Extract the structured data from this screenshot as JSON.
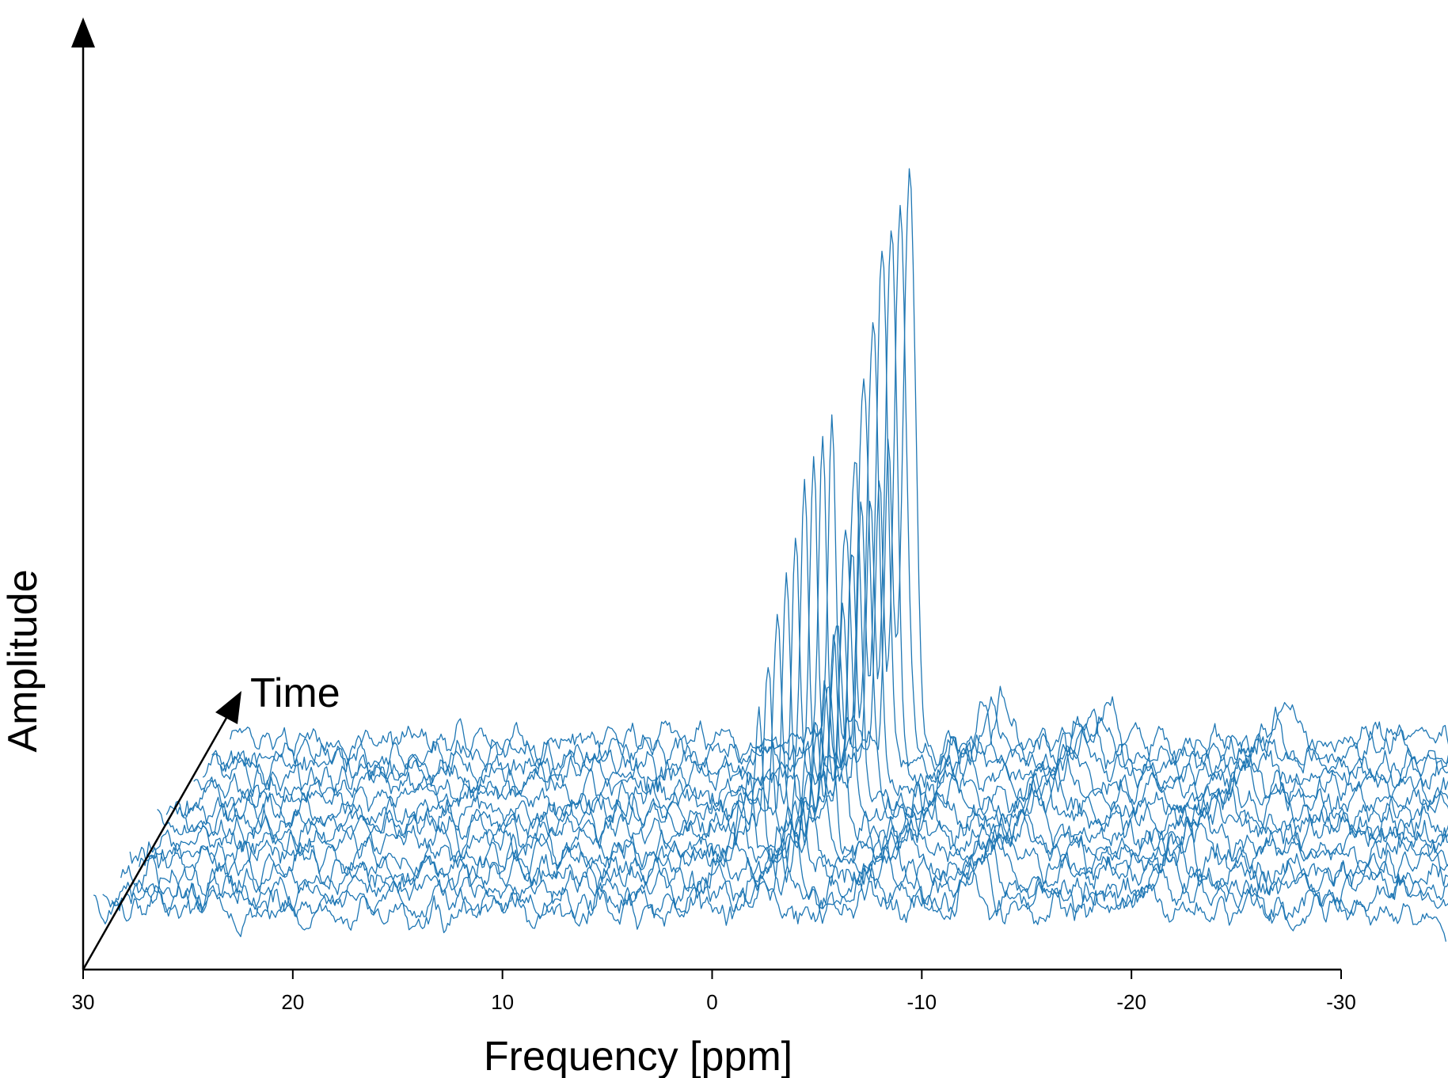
{
  "chart_data": {
    "type": "line",
    "subtype": "waterfall-3d",
    "xlabel": "Frequency [ppm]",
    "ylabel": "Amplitude",
    "depth_label": "Time",
    "x_reversed": true,
    "xlim": [
      30,
      -30
    ],
    "xticks": [
      30,
      20,
      10,
      0,
      -10,
      -20,
      -30
    ],
    "xtick_labels": [
      "30",
      "20",
      "10",
      "0",
      "-10",
      "-20",
      "-30"
    ],
    "frequency_span": [
      29.5,
      -35
    ],
    "time_steps": 16,
    "line_color": "#1f77b4",
    "axis_color": "#000000",
    "ylim": [
      0,
      1
    ],
    "peaks": [
      {
        "center_ppm": 0.8,
        "width_ppm": 0.18,
        "height_by_time": [
          0.02,
          0.02,
          0.02,
          0.03,
          0.04,
          0.06,
          0.08,
          0.12,
          0.16,
          0.2,
          0.24,
          0.28,
          0.32,
          0.33,
          0.35,
          0.37
        ]
      },
      {
        "center_ppm": -2.9,
        "width_ppm": 0.28,
        "height_by_time": [
          0.04,
          0.05,
          0.06,
          0.08,
          0.1,
          0.14,
          0.18,
          0.23,
          0.3,
          0.38,
          0.46,
          0.52,
          0.57,
          0.6,
          0.62,
          0.64
        ]
      },
      {
        "center_ppm": -1.9,
        "width_ppm": 0.18,
        "height_by_time": [
          0.03,
          0.04,
          0.04,
          0.05,
          0.06,
          0.08,
          0.1,
          0.12,
          0.15,
          0.18,
          0.22,
          0.26,
          0.28,
          0.3,
          0.32,
          0.33
        ]
      },
      {
        "center_ppm": -7.3,
        "width_ppm": 0.35,
        "height_by_time": [
          0.05,
          0.05,
          0.05,
          0.05,
          0.05,
          0.05,
          0.05,
          0.05,
          0.05,
          0.05,
          0.05,
          0.05,
          0.05,
          0.05,
          0.05,
          0.05
        ]
      },
      {
        "center_ppm": -12.3,
        "width_ppm": 0.4,
        "height_by_time": [
          0.05,
          0.05,
          0.05,
          0.05,
          0.05,
          0.05,
          0.05,
          0.05,
          0.05,
          0.05,
          0.05,
          0.05,
          0.05,
          0.05,
          0.05,
          0.05
        ]
      },
      {
        "center_ppm": -20.8,
        "width_ppm": 0.4,
        "height_by_time": [
          0.035,
          0.035,
          0.035,
          0.035,
          0.035,
          0.035,
          0.035,
          0.035,
          0.035,
          0.035,
          0.035,
          0.035,
          0.035,
          0.035,
          0.035,
          0.035
        ]
      }
    ],
    "noise_amplitude": 0.025
  }
}
